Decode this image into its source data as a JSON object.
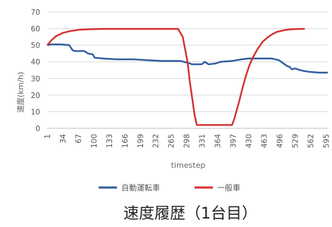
{
  "chart_data": {
    "type": "line",
    "xlabel": "timestep",
    "ylabel": "速度(km/h)",
    "ylim": [
      0,
      70
    ],
    "yticks": [
      0,
      10,
      20,
      30,
      40,
      50,
      60,
      70
    ],
    "x_ticks": [
      "1",
      "34",
      "67",
      "100",
      "133",
      "166",
      "199",
      "232",
      "265",
      "298",
      "331",
      "364",
      "397",
      "430",
      "463",
      "496",
      "529",
      "562",
      "595"
    ],
    "grid": true,
    "legend_position": "bottom",
    "series": [
      {
        "name": "自動運転車",
        "color": "#2e5c9e",
        "points": [
          [
            1,
            50
          ],
          [
            8,
            50.5
          ],
          [
            30,
            50.5
          ],
          [
            48,
            50
          ],
          [
            55,
            47
          ],
          [
            60,
            46.5
          ],
          [
            80,
            46.5
          ],
          [
            88,
            45
          ],
          [
            98,
            44.5
          ],
          [
            102,
            42.5
          ],
          [
            120,
            42
          ],
          [
            150,
            41.5
          ],
          [
            185,
            41.5
          ],
          [
            215,
            41
          ],
          [
            245,
            40.5
          ],
          [
            265,
            40.5
          ],
          [
            285,
            40.5
          ],
          [
            300,
            39.5
          ],
          [
            310,
            38.5
          ],
          [
            330,
            38.5
          ],
          [
            337,
            40
          ],
          [
            345,
            38.5
          ],
          [
            360,
            39
          ],
          [
            370,
            40
          ],
          [
            395,
            40.5
          ],
          [
            415,
            41.5
          ],
          [
            430,
            42
          ],
          [
            460,
            42
          ],
          [
            470,
            42
          ],
          [
            480,
            42
          ],
          [
            495,
            41
          ],
          [
            505,
            39
          ],
          [
            512,
            37.5
          ],
          [
            518,
            37
          ],
          [
            522,
            35.5
          ],
          [
            530,
            36
          ],
          [
            540,
            35
          ],
          [
            548,
            34.5
          ],
          [
            560,
            34
          ],
          [
            580,
            33.5
          ],
          [
            599,
            33.5
          ]
        ]
      },
      {
        "name": "一般車",
        "color": "#d42e2e",
        "points": [
          [
            1,
            50
          ],
          [
            10,
            53
          ],
          [
            20,
            55.5
          ],
          [
            35,
            57.5
          ],
          [
            50,
            58.5
          ],
          [
            70,
            59.3
          ],
          [
            90,
            59.6
          ],
          [
            120,
            59.8
          ],
          [
            200,
            59.8
          ],
          [
            280,
            59.8
          ],
          [
            290,
            55
          ],
          [
            300,
            40
          ],
          [
            305,
            28
          ],
          [
            310,
            18
          ],
          [
            315,
            8
          ],
          [
            320,
            2
          ],
          [
            330,
            2
          ],
          [
            350,
            2
          ],
          [
            375,
            2
          ],
          [
            395,
            2
          ],
          [
            400,
            6
          ],
          [
            405,
            11
          ],
          [
            410,
            16
          ],
          [
            418,
            25
          ],
          [
            425,
            32
          ],
          [
            432,
            38
          ],
          [
            440,
            43
          ],
          [
            450,
            48
          ],
          [
            460,
            52
          ],
          [
            470,
            54.5
          ],
          [
            480,
            56.5
          ],
          [
            490,
            58
          ],
          [
            505,
            59
          ],
          [
            520,
            59.6
          ],
          [
            540,
            59.8
          ],
          [
            550,
            59.8
          ]
        ]
      }
    ]
  },
  "caption": "速度履歴（1台目）"
}
